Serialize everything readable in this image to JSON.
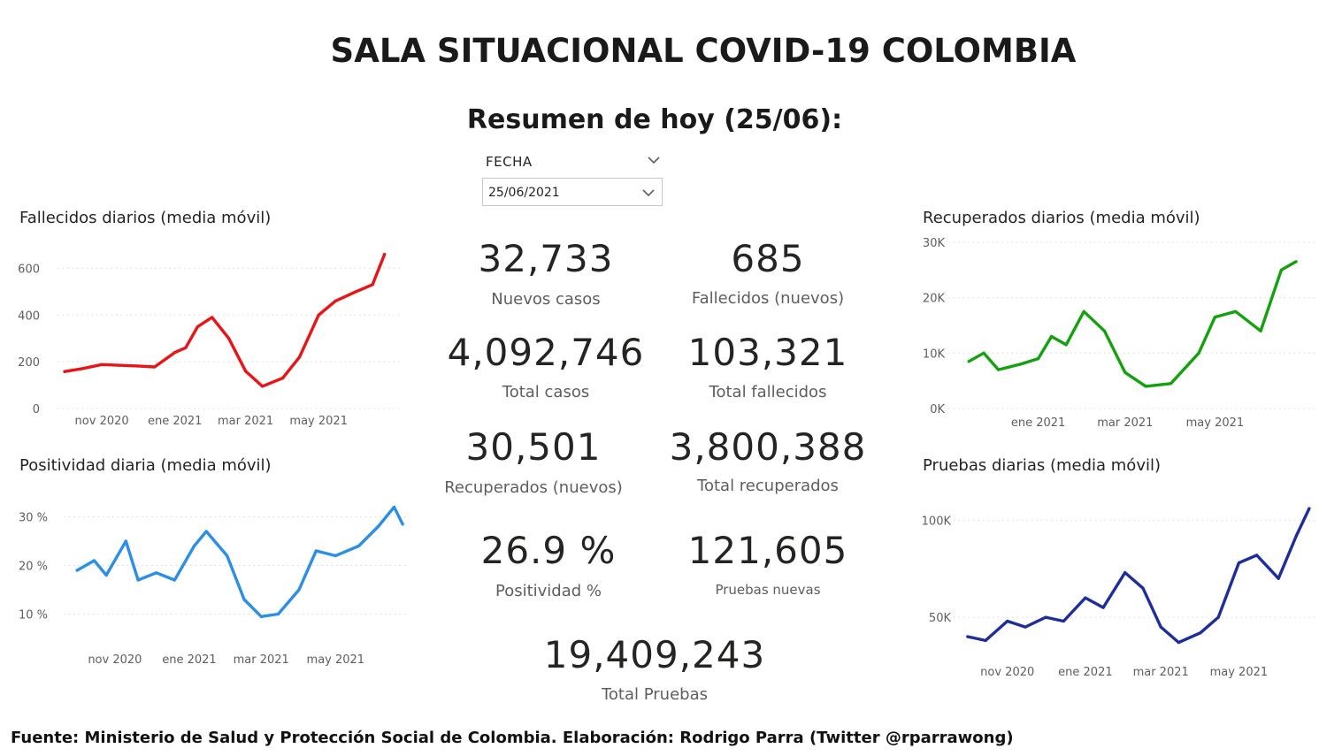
{
  "header": {
    "title": "SALA SITUACIONAL COVID-19 COLOMBIA",
    "subtitle": "Resumen de hoy (25/06):"
  },
  "slicer": {
    "label": "FECHA",
    "value": "25/06/2021"
  },
  "kpis": [
    {
      "value": "32,733",
      "label": "Nuevos casos"
    },
    {
      "value": "685",
      "label": "Fallecidos (nuevos)"
    },
    {
      "value": "4,092,746",
      "label": "Total casos"
    },
    {
      "value": "103,321",
      "label": "Total fallecidos"
    },
    {
      "value": "30,501",
      "label": "Recuperados (nuevos)"
    },
    {
      "value": "3,800,388",
      "label": "Total recuperados"
    },
    {
      "value": "26.9 %",
      "label": "Positividad %"
    },
    {
      "value": "121,605",
      "label": "Pruebas nuevas"
    },
    {
      "value": "19,409,243",
      "label": "Total Pruebas"
    }
  ],
  "footer": "Fuente: Ministerio de Salud y Protección Social de Colombia. Elaboración: Rodrigo Parra (Twitter @rparrawong)",
  "chart_data": [
    {
      "type": "line",
      "title": "Fallecidos diarios (media móvil)",
      "color": "#e81416",
      "x": [
        "2020-10-01",
        "2020-10-15",
        "2020-11-01",
        "2020-11-15",
        "2020-12-01",
        "2020-12-15",
        "2021-01-01",
        "2021-01-10",
        "2021-01-20",
        "2021-02-01",
        "2021-02-15",
        "2021-03-01",
        "2021-03-15",
        "2021-04-01",
        "2021-04-15",
        "2021-05-01",
        "2021-05-15",
        "2021-06-01",
        "2021-06-15",
        "2021-06-25"
      ],
      "values": [
        158,
        170,
        188,
        185,
        182,
        178,
        240,
        260,
        350,
        390,
        300,
        160,
        95,
        130,
        220,
        400,
        460,
        500,
        530,
        660
      ],
      "y_ticks": [
        "0",
        "200",
        "400",
        "600"
      ],
      "ylim": [
        0,
        700
      ],
      "x_ticks": [
        "nov 2020",
        "ene 2021",
        "mar 2021",
        "may 2021"
      ],
      "grid": true
    },
    {
      "type": "line",
      "title": "Positividad diaria (media móvil)",
      "color": "#2b8ee8",
      "x": [
        "2020-10-01",
        "2020-10-15",
        "2020-10-25",
        "2020-11-10",
        "2020-11-20",
        "2020-12-05",
        "2020-12-20",
        "2021-01-05",
        "2021-01-15",
        "2021-02-01",
        "2021-02-15",
        "2021-03-01",
        "2021-03-15",
        "2021-04-01",
        "2021-04-15",
        "2021-05-01",
        "2021-05-20",
        "2021-06-05",
        "2021-06-18",
        "2021-06-25"
      ],
      "values": [
        19,
        21,
        18,
        25,
        17,
        18.5,
        17,
        24,
        27,
        22,
        13,
        9.5,
        10,
        15,
        23,
        22,
        24,
        28,
        32,
        28.5
      ],
      "y_ticks": [
        "10 %",
        "20 %",
        "30 %"
      ],
      "ylim": [
        5,
        35
      ],
      "x_ticks": [
        "nov 2020",
        "ene 2021",
        "mar 2021",
        "may 2021"
      ],
      "grid": true
    },
    {
      "type": "line",
      "title": "Recuperados diarios (media móvil)",
      "color": "#13a10e",
      "x": [
        "2020-11-15",
        "2020-11-25",
        "2020-12-05",
        "2020-12-20",
        "2021-01-01",
        "2021-01-10",
        "2021-01-20",
        "2021-02-01",
        "2021-02-15",
        "2021-03-01",
        "2021-03-15",
        "2021-04-01",
        "2021-04-20",
        "2021-05-01",
        "2021-05-15",
        "2021-06-01",
        "2021-06-15",
        "2021-06-25"
      ],
      "values": [
        8500,
        10000,
        7000,
        8000,
        9000,
        13000,
        11500,
        17500,
        14000,
        6500,
        4000,
        4500,
        10000,
        16500,
        17500,
        14000,
        25000,
        26500
      ],
      "y_ticks": [
        "0K",
        "10K",
        "20K",
        "30K"
      ],
      "ylim": [
        0,
        30000
      ],
      "x_ticks": [
        "ene 2021",
        "mar 2021",
        "may 2021"
      ],
      "grid": true
    },
    {
      "type": "line",
      "title": "Pruebas diarias (media móvil)",
      "color": "#1e2d9c",
      "x": [
        "2020-10-01",
        "2020-10-15",
        "2020-11-01",
        "2020-11-15",
        "2020-12-01",
        "2020-12-15",
        "2021-01-01",
        "2021-01-15",
        "2021-02-01",
        "2021-02-15",
        "2021-03-01",
        "2021-03-15",
        "2021-04-01",
        "2021-04-15",
        "2021-05-01",
        "2021-05-15",
        "2021-06-01",
        "2021-06-15",
        "2021-06-25"
      ],
      "values": [
        40000,
        38000,
        48000,
        45000,
        50000,
        48000,
        60000,
        55000,
        73000,
        65000,
        45000,
        37000,
        42000,
        50000,
        78000,
        82000,
        70000,
        92000,
        106000
      ],
      "y_ticks": [
        "50K",
        "100K"
      ],
      "ylim": [
        30000,
        112000
      ],
      "x_ticks": [
        "nov 2020",
        "ene 2021",
        "mar 2021",
        "may 2021"
      ],
      "grid": true
    }
  ]
}
